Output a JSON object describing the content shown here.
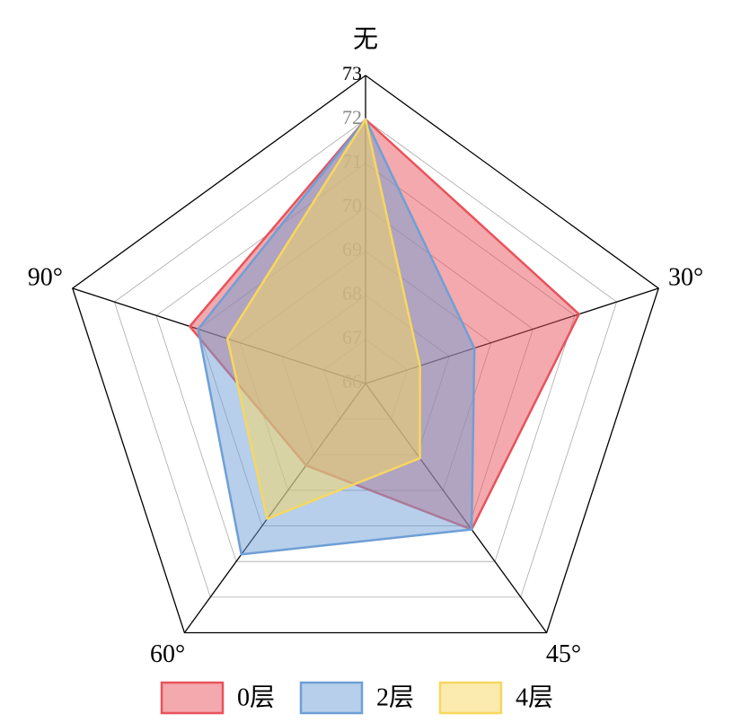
{
  "chart_data": {
    "type": "radar",
    "categories": [
      "无",
      "30°",
      "45°",
      "60°",
      "90°"
    ],
    "rlim": [
      66,
      73
    ],
    "rticks": [
      66,
      67,
      68,
      69,
      70,
      71,
      72,
      73
    ],
    "series": [
      {
        "name": "0层",
        "color": "#e8535c",
        "values": [
          72,
          71.1,
          70.1,
          68.3,
          70.2
        ]
      },
      {
        "name": "2层",
        "color": "#6f9fd6",
        "values": [
          72,
          68.6,
          70.1,
          70.8,
          70.0
        ]
      },
      {
        "name": "4层",
        "color": "#f7d75e",
        "values": [
          72,
          67.3,
          68.1,
          69.8,
          69.3
        ]
      }
    ],
    "legend": "bottom"
  }
}
